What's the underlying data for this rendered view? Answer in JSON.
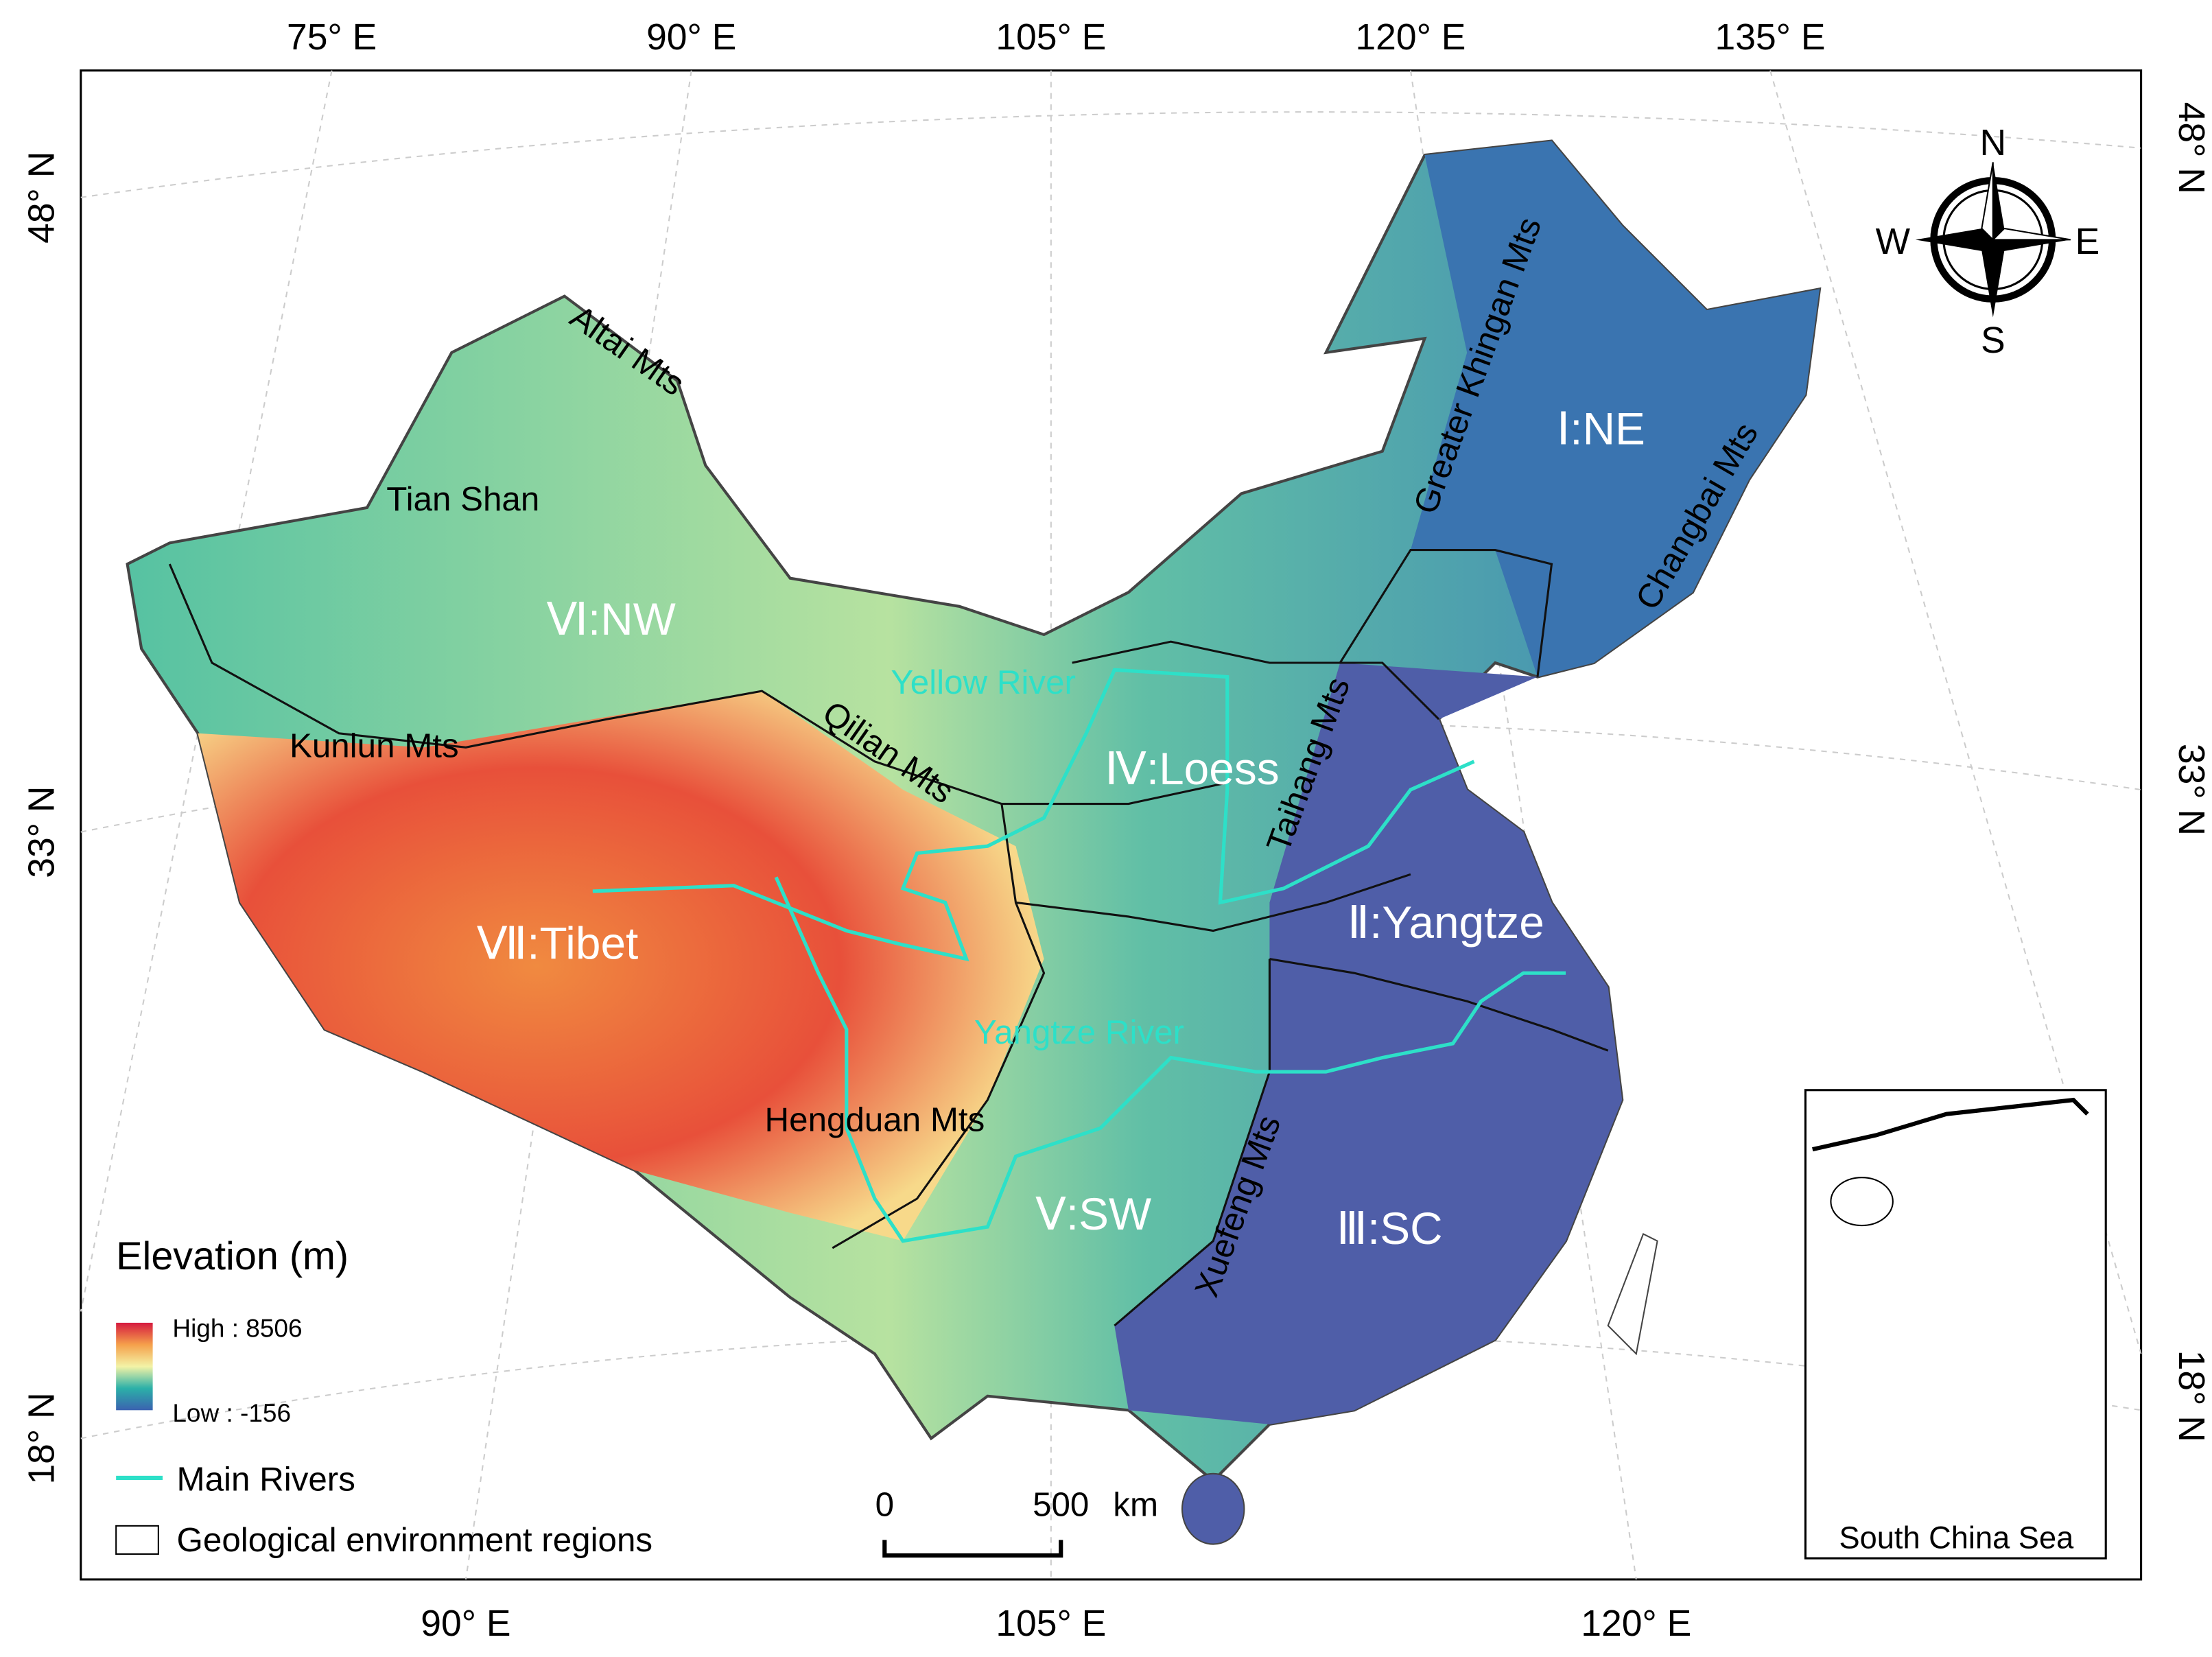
{
  "graticule": {
    "top": [
      "75° E",
      "90° E",
      "105° E",
      "120° E",
      "135° E"
    ],
    "bottom": [
      "90° E",
      "105° E",
      "120° E"
    ],
    "left": [
      "48° N",
      "33° N",
      "18° N"
    ],
    "right": [
      "48° N",
      "33° N",
      "18° N"
    ]
  },
  "regions": [
    "Ⅰ:NE",
    "Ⅱ:Yangtze",
    "Ⅲ:SC",
    "Ⅳ:Loess",
    "Ⅴ:SW",
    "Ⅵ:NW",
    "Ⅶ:Tibet"
  ],
  "mountains": [
    "Altai Mts",
    "Tian Shan",
    "Kunlun Mts",
    "Qilian Mts",
    "Hengduan Mts",
    "Greater Khingan Mts",
    "Changbai Mts",
    "Taihang Mts",
    "Xuefeng Mts"
  ],
  "rivers": [
    "Yellow River",
    "Yangtze River"
  ],
  "compass": [
    "N",
    "S",
    "W",
    "E"
  ],
  "legend": {
    "title": "Elevation (m)",
    "high": "High : 8506",
    "low": "Low : -156",
    "rivers": "Main Rivers",
    "regions": "Geological environment regions"
  },
  "scale_bar": {
    "start": "0",
    "end": "500",
    "unit": "km"
  },
  "inset": "South China Sea"
}
